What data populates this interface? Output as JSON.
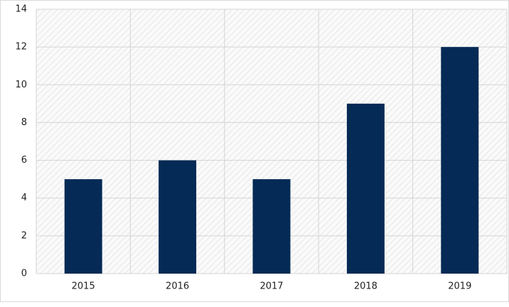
{
  "chart_data": {
    "type": "bar",
    "categories": [
      "2015",
      "2016",
      "2017",
      "2018",
      "2019"
    ],
    "values": [
      5,
      6,
      5,
      9,
      12
    ],
    "color": "#042a55",
    "ylim": [
      0,
      14
    ],
    "yticks": [
      0,
      2,
      4,
      6,
      8,
      10,
      12,
      14
    ],
    "grid": true
  }
}
